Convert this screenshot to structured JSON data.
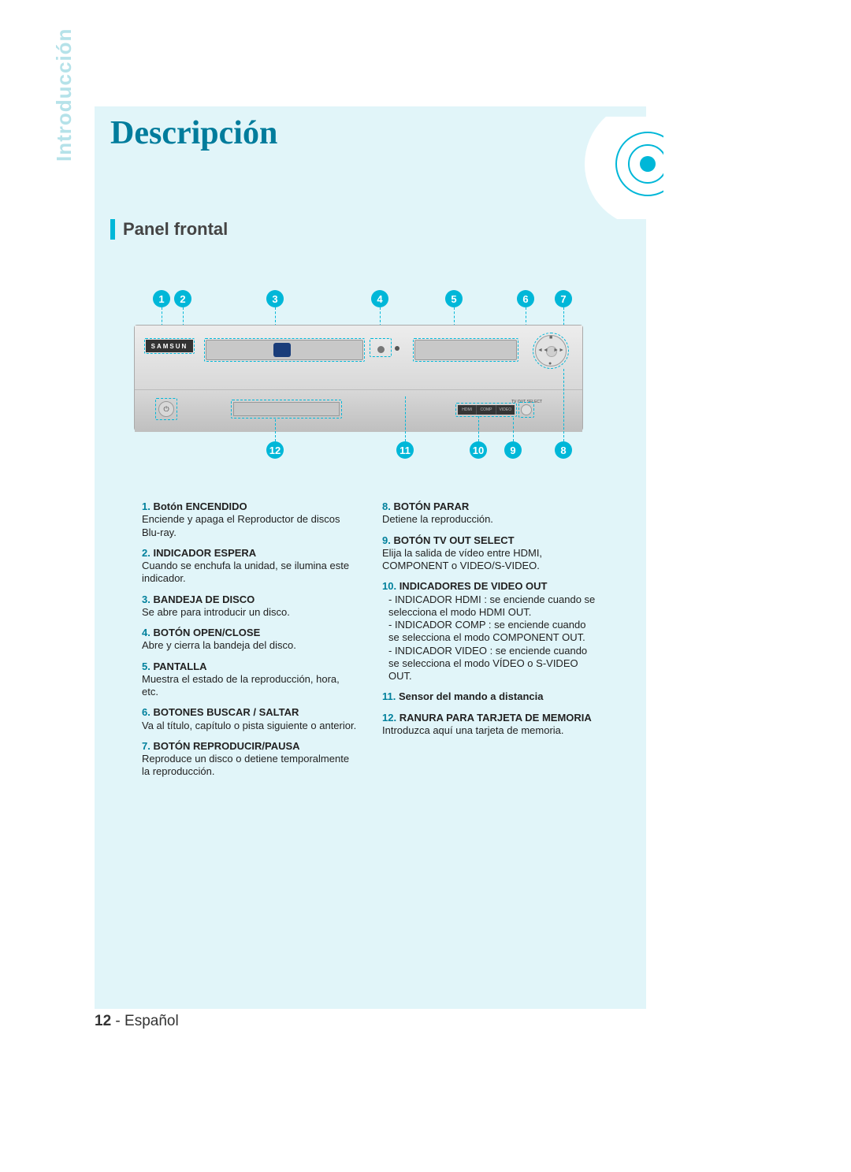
{
  "sidebar": {
    "label": "Introducción"
  },
  "title": "Descripción",
  "section_heading": "Panel frontal",
  "accent_color": "#00b7d8",
  "page_bg": "#e1f5f9",
  "title_color": "#007c9c",
  "callouts_top": [
    1,
    2,
    3,
    4,
    5,
    6,
    7
  ],
  "callouts_bot": [
    12,
    11,
    10,
    9,
    8
  ],
  "device": {
    "logo": "SAMSUN",
    "tvout_segs": [
      "HDMI",
      "COMP",
      "VIDEO"
    ],
    "tvout_label": "TV OUT SELECT"
  },
  "left_col": [
    {
      "n": "1.",
      "title": "Botón ENCENDIDO",
      "desc": "Enciende y apaga el Reproductor de discos Blu-ray."
    },
    {
      "n": "2.",
      "title": "INDICADOR ESPERA",
      "desc": "Cuando se enchufa la unidad, se ilumina este indicador."
    },
    {
      "n": "3.",
      "title": "BANDEJA DE DISCO",
      "desc": "Se abre para introducir un disco."
    },
    {
      "n": "4.",
      "title": "BOTÓN OPEN/CLOSE",
      "desc": "Abre y cierra la bandeja del disco."
    },
    {
      "n": "5.",
      "title": "PANTALLA",
      "desc": "Muestra el estado de la reproducción, hora, etc."
    },
    {
      "n": "6.",
      "title": "BOTONES BUSCAR / SALTAR",
      "desc": "Va al título, capítulo o pista siguiente o anterior."
    },
    {
      "n": "7.",
      "title": "BOTÓN REPRODUCIR/PAUSA",
      "desc": "Reproduce un disco o detiene temporalmente la reproducción."
    }
  ],
  "right_col": [
    {
      "n": "8.",
      "title": "BOTÓN PARAR",
      "desc": "Detiene la reproducción."
    },
    {
      "n": "9.",
      "title": "BOTÓN TV OUT SELECT",
      "desc": "Elija la salida de vídeo entre HDMI, COMPONENT o VIDEO/S-VIDEO."
    },
    {
      "n": "10.",
      "title": "INDICADORES DE VIDEO OUT",
      "subs": [
        "- INDICADOR HDMI : se enciende cuando se selecciona el modo HDMI OUT.",
        "- INDICADOR COMP : se enciende cuando se selecciona el modo COMPONENT OUT.",
        "- INDICADOR VIDEO : se enciende cuando se selecciona el modo VÍDEO o S-VIDEO OUT."
      ]
    },
    {
      "n": "11.",
      "title": "Sensor del mando a distancia",
      "desc": ""
    },
    {
      "n": "12.",
      "title": "RANURA PARA TARJETA DE MEMORIA",
      "desc": "Introduzca aquí una tarjeta de memoria."
    }
  ],
  "footer": {
    "page": "12",
    "sep": " - ",
    "lang": "Español"
  }
}
